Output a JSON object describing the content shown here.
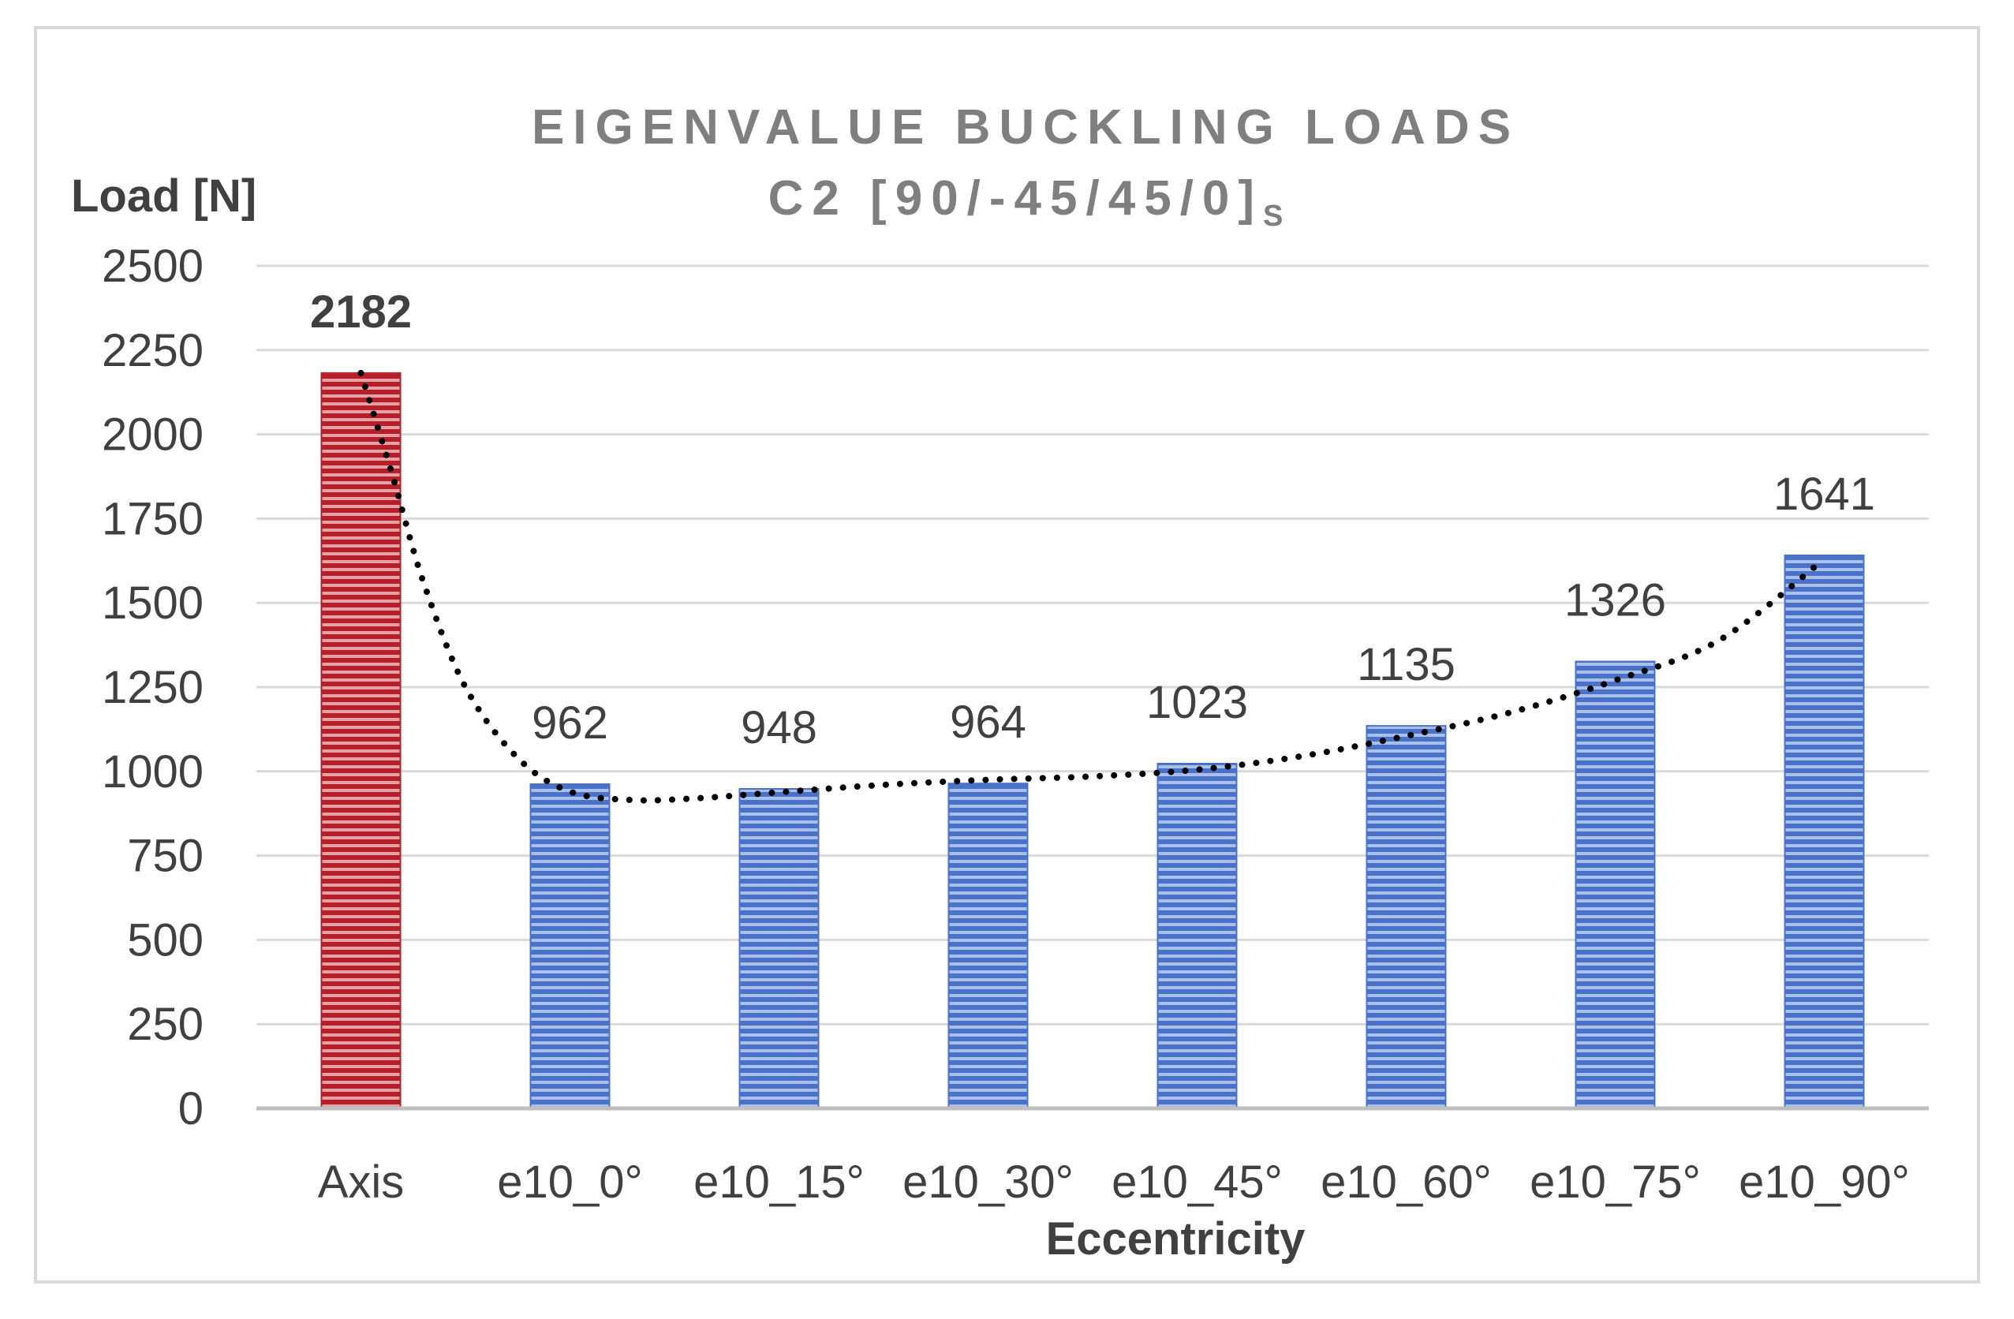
{
  "chart_data": {
    "type": "bar",
    "title": {
      "line1": "EIGENVALUE BUCKLING LOADS",
      "line2_main": "C2 [90/-45/45/0]",
      "line2_subscript": "S"
    },
    "xlabel": "Eccentricity",
    "ylabel": "Load [N]",
    "ylim": [
      0,
      2500
    ],
    "yticks": [
      0,
      250,
      500,
      750,
      1000,
      1250,
      1500,
      1750,
      2000,
      2250,
      2500
    ],
    "grid": true,
    "legend": "none",
    "categories": [
      "Axis",
      "e10_0°",
      "e10_15°",
      "e10_30°",
      "e10_45°",
      "e10_60°",
      "e10_75°",
      "e10_90°"
    ],
    "values": [
      2182,
      962,
      948,
      964,
      1023,
      1135,
      1326,
      1641
    ],
    "data_labels": [
      "2182",
      "962",
      "948",
      "964",
      "1023",
      "1135",
      "1326",
      "1641"
    ],
    "highlight_index": 0,
    "colors": {
      "highlight_bar": "#b3202a",
      "highlight_stripe": "#e8a0a5",
      "bar": "#4a72c8",
      "bar_stripe": "#a9c0ea",
      "grid": "#d9d9d9",
      "axis": "#bfbfbf",
      "trendline": "#000000",
      "frame": "#d9d9d9"
    },
    "trendline": {
      "style": "dotted",
      "type": "polynomial",
      "points": [
        [
          0,
          2182
        ],
        [
          0.15,
          1880
        ],
        [
          0.3,
          1560
        ],
        [
          0.5,
          1250
        ],
        [
          0.75,
          1040
        ],
        [
          1,
          940
        ],
        [
          1.3,
          915
        ],
        [
          1.6,
          920
        ],
        [
          2,
          938
        ],
        [
          2.5,
          960
        ],
        [
          3,
          975
        ],
        [
          3.5,
          985
        ],
        [
          4,
          1005
        ],
        [
          4.5,
          1045
        ],
        [
          5,
          1105
        ],
        [
          5.5,
          1175
        ],
        [
          6,
          1270
        ],
        [
          6.5,
          1390
        ],
        [
          7,
          1630
        ]
      ]
    }
  }
}
